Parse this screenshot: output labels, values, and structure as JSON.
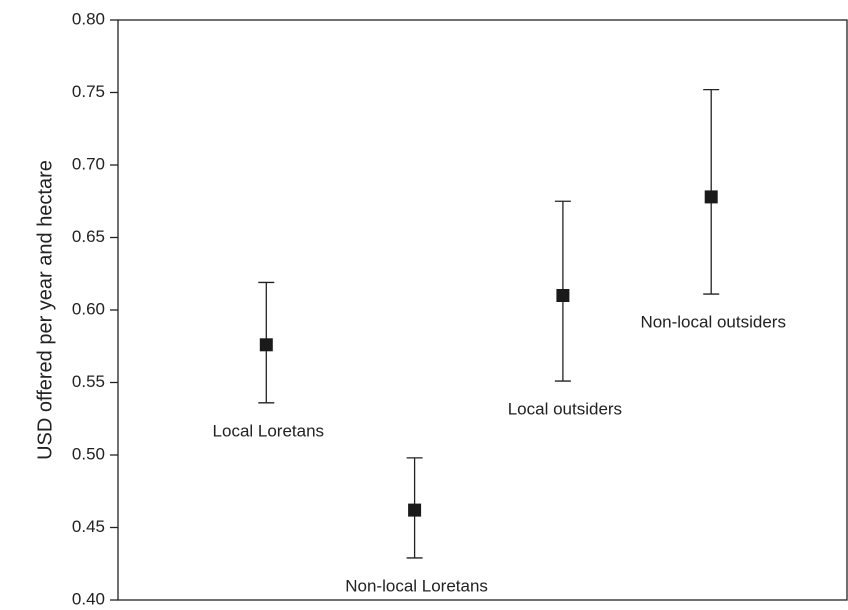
{
  "chart_data": {
    "type": "errorbar",
    "y_label": "USD offered per year and hectare",
    "categories": [
      "Local Loretans",
      "Non-local Loretans",
      "Local outsiders",
      "Non-local outsiders"
    ],
    "values": [
      0.576,
      0.462,
      0.61,
      0.678
    ],
    "lower": [
      0.536,
      0.429,
      0.551,
      0.611
    ],
    "upper": [
      0.619,
      0.498,
      0.675,
      0.752
    ],
    "color": "#1a1a1a",
    "ylim": [
      0.4,
      0.8
    ],
    "yticks": [
      {
        "value": 0.4,
        "label": "0.40"
      },
      0.45,
      {
        "value": 0.5,
        "label": "0.50"
      },
      0.55,
      {
        "value": 0.6,
        "label": "0.60"
      },
      0.65,
      {
        "value": 0.7,
        "label": "0.70"
      },
      0.75,
      {
        "value": 0.8,
        "label": "0.80"
      }
    ]
  }
}
